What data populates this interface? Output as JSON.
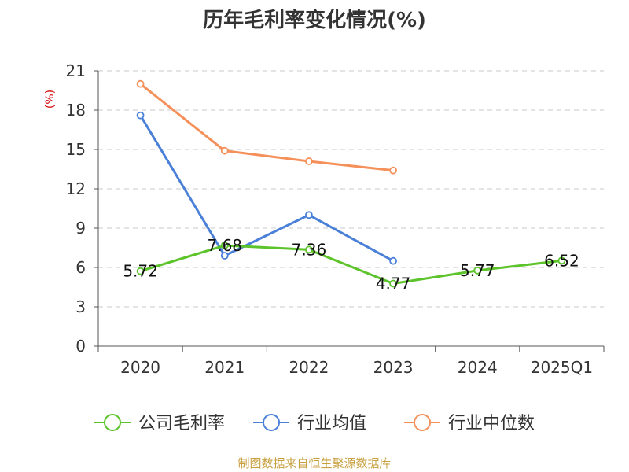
{
  "chart_data": {
    "type": "line",
    "title": "历年毛利率变化情况(%)",
    "ylabel": "(%)",
    "xlabel": "",
    "categories": [
      "2020",
      "2021",
      "2022",
      "2023",
      "2024",
      "2025Q1"
    ],
    "ylim": [
      0,
      21
    ],
    "yticks": [
      0,
      3,
      6,
      9,
      12,
      15,
      18,
      21
    ],
    "grid": true,
    "legend_position": "bottom",
    "series": [
      {
        "name": "公司毛利率",
        "color": "#5cc32a",
        "values": [
          5.72,
          7.68,
          7.36,
          4.77,
          5.77,
          6.52
        ],
        "labels": [
          "5.72",
          "7.68",
          "7.36",
          "4.77",
          "5.77",
          "6.52"
        ]
      },
      {
        "name": "行业均值",
        "color": "#4a80d8",
        "values": [
          17.6,
          6.9,
          10.0,
          6.5,
          null,
          null
        ]
      },
      {
        "name": "行业中位数",
        "color": "#f5905a",
        "values": [
          20.0,
          14.9,
          14.1,
          13.4,
          null,
          null
        ]
      }
    ],
    "source": "制图数据来自恒生聚源数据库"
  }
}
